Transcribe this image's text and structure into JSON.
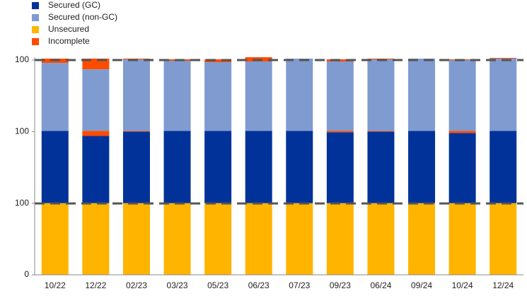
{
  "chart_data": {
    "type": "stacked_bar",
    "categories": [
      "10/22",
      "12/22",
      "02/23",
      "03/23",
      "05/23",
      "06/23",
      "07/23",
      "09/23",
      "06/24",
      "09/24",
      "10/24",
      "12/24"
    ],
    "series": [
      {
        "name": "Secured (GC)",
        "color": "#003299",
        "values": [
          101,
          94,
          100,
          101,
          101,
          101,
          101,
          99,
          100,
          101,
          98,
          101
        ]
      },
      {
        "name": "Secured (non-GC)",
        "color": "#7f9bd0",
        "values": [
          95,
          86,
          100,
          98,
          96,
          97,
          101,
          97,
          100,
          101,
          99,
          101
        ]
      },
      {
        "name": "Unsecured",
        "color": "#ffb400",
        "values": [
          100,
          100,
          100,
          100,
          100,
          100,
          100,
          100,
          100,
          100,
          100,
          100
        ]
      },
      {
        "name": "Incomplete",
        "color": "#ff4b00",
        "values": [
          6,
          15,
          1,
          2,
          4,
          6,
          0,
          3,
          1,
          0,
          1,
          1
        ]
      },
      {
        "color": "#ff4b00",
        "values": [
          0,
          7,
          1,
          0,
          0,
          0,
          0,
          2,
          1,
          0,
          3,
          0
        ]
      }
    ],
    "ylim": [
      0,
      300
    ],
    "yticks": [
      0,
      {
        "value": 100,
        "label": "100"
      },
      {
        "value": 200,
        "label": "100"
      },
      {
        "value": 300,
        "label": "100"
      }
    ],
    "grid": false,
    "legend": "top-left"
  }
}
